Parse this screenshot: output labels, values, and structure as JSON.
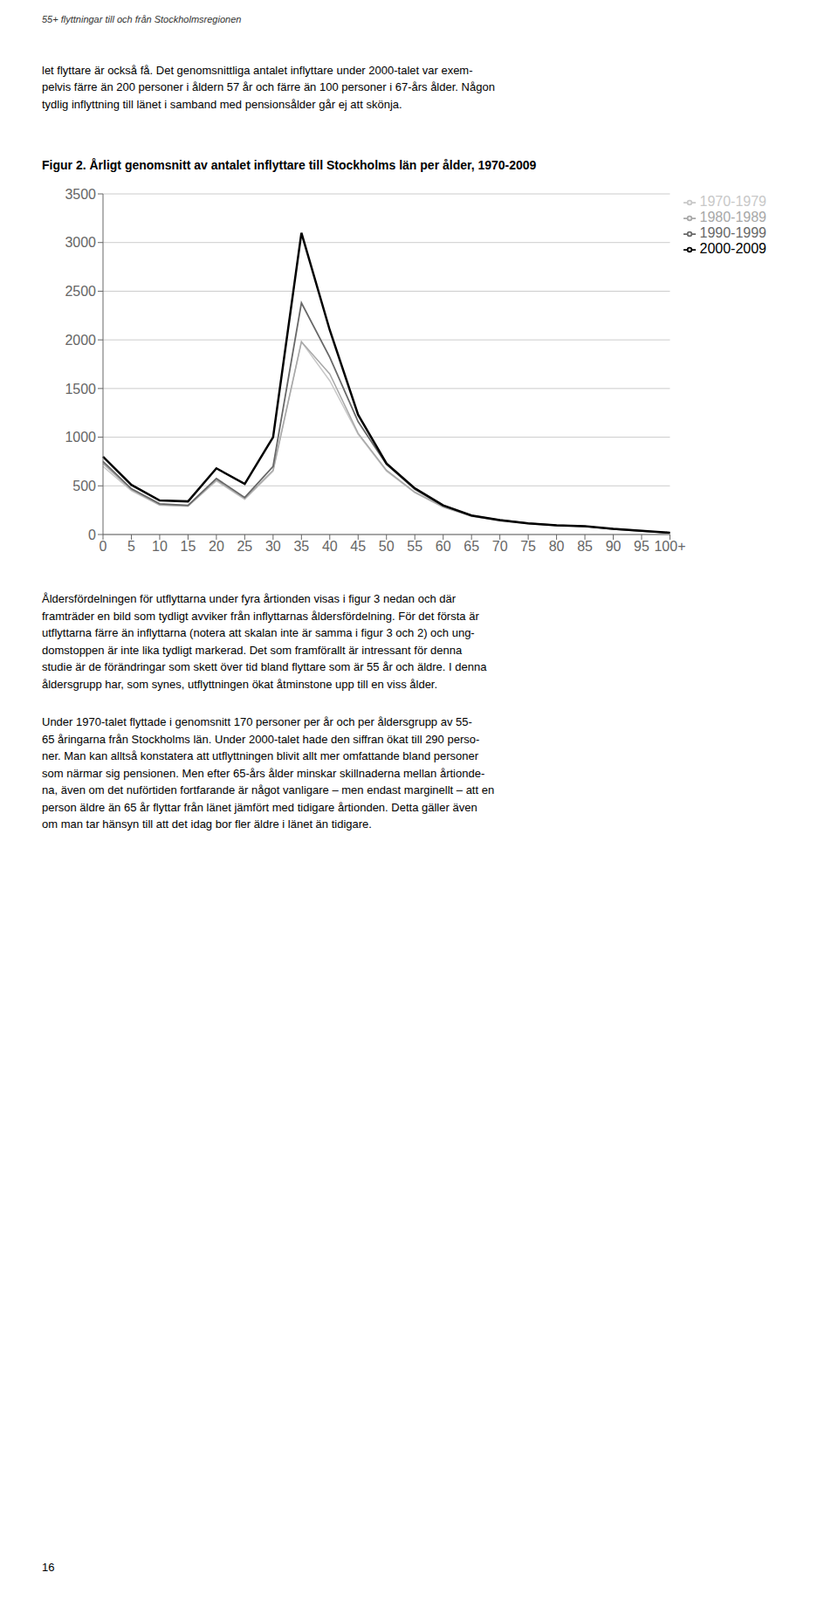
{
  "chart_data": {
    "type": "line",
    "title": "Figur 2. Årligt genomsnitt av antalet inflyttare till Stockholms län per ålder, 1970-2009",
    "categories": [
      "0",
      "5",
      "10",
      "15",
      "20",
      "25",
      "30",
      "35",
      "40",
      "45",
      "50",
      "55",
      "60",
      "65",
      "70",
      "75",
      "80",
      "85",
      "90",
      "95",
      "100+"
    ],
    "series": [
      {
        "name": "1970-1979",
        "color": "#c8c8c8",
        "values": [
          700,
          450,
          300,
          290,
          550,
          360,
          650,
          1980,
          1580,
          1030,
          650,
          430,
          280,
          185,
          140,
          110,
          92,
          80,
          60,
          40,
          18
        ]
      },
      {
        "name": "1980-1989",
        "color": "#a8a8a8",
        "values": [
          730,
          460,
          305,
          295,
          560,
          370,
          660,
          1980,
          1650,
          1040,
          660,
          435,
          285,
          190,
          142,
          112,
          93,
          82,
          57,
          36,
          16
        ]
      },
      {
        "name": "1990-1999",
        "color": "#686868",
        "values": [
          750,
          470,
          315,
          300,
          575,
          380,
          700,
          2380,
          1820,
          1160,
          720,
          465,
          295,
          195,
          148,
          115,
          95,
          85,
          55,
          35,
          17
        ]
      },
      {
        "name": "2000-2009",
        "color": "#000000",
        "values": [
          800,
          510,
          350,
          340,
          680,
          520,
          1000,
          3100,
          2100,
          1230,
          730,
          475,
          300,
          195,
          148,
          115,
          95,
          85,
          58,
          38,
          18
        ]
      }
    ],
    "ylim": [
      0,
      3500
    ],
    "yticks": [
      0,
      500,
      1000,
      1500,
      2000,
      2500,
      3000,
      3500
    ],
    "grid": true,
    "legend": "upper right",
    "annotations": [
      "55+ flyttningar till och från Stockholmsregionen",
      "let flyttare är också få. Det genomsnittliga antalet inflyttare under 2000-talet var exem-\npelvis färre än 200 personer i åldern 57 år och färre än 100 personer i 67-års ålder. Någon\ntydlig inflyttning till länet i samband med pensionsålder går ej att skönja.",
      "Åldersfördelningen för utflyttarna under fyra årtionden visas i figur 3 nedan och där\nframträder en bild som tydligt avviker från inflyttarnas åldersfördelning. För det första är\nutflyttarna färre än inflyttarna (notera att skalan inte är samma i figur 3 och 2) och ung-\ndomstoppen är inte lika tydligt markerad. Det som framförallt är intressant för denna\nstudie är de förändringar som skett över tid bland flyttare som är 55 år och äldre. I denna\nåldersgrupp har, som synes, utflyttningen ökat åtminstone upp till en viss ålder.",
      "Under 1970-talet flyttade i genomsnitt 170 personer per år och per åldersgrupp av 55-\n65 åringarna från Stockholms län. Under 2000-talet hade den siffran ökat till 290 perso-\nner. Man kan alltså konstatera att utflyttningen blivit allt mer omfattande bland personer\nsom närmar sig pensionen. Men efter 65-års ålder minskar skillnaderna mellan årtionde-\nna, även om det nuförtiden fortfarande är något vanligare – men endast marginellt – att en\nperson äldre än 65 år flyttar från länet jämfört med tidigare årtionden. Detta gäller även\nom man tar hänsyn till att det idag bor fler äldre i länet än tidigare.",
      "16"
    ]
  }
}
